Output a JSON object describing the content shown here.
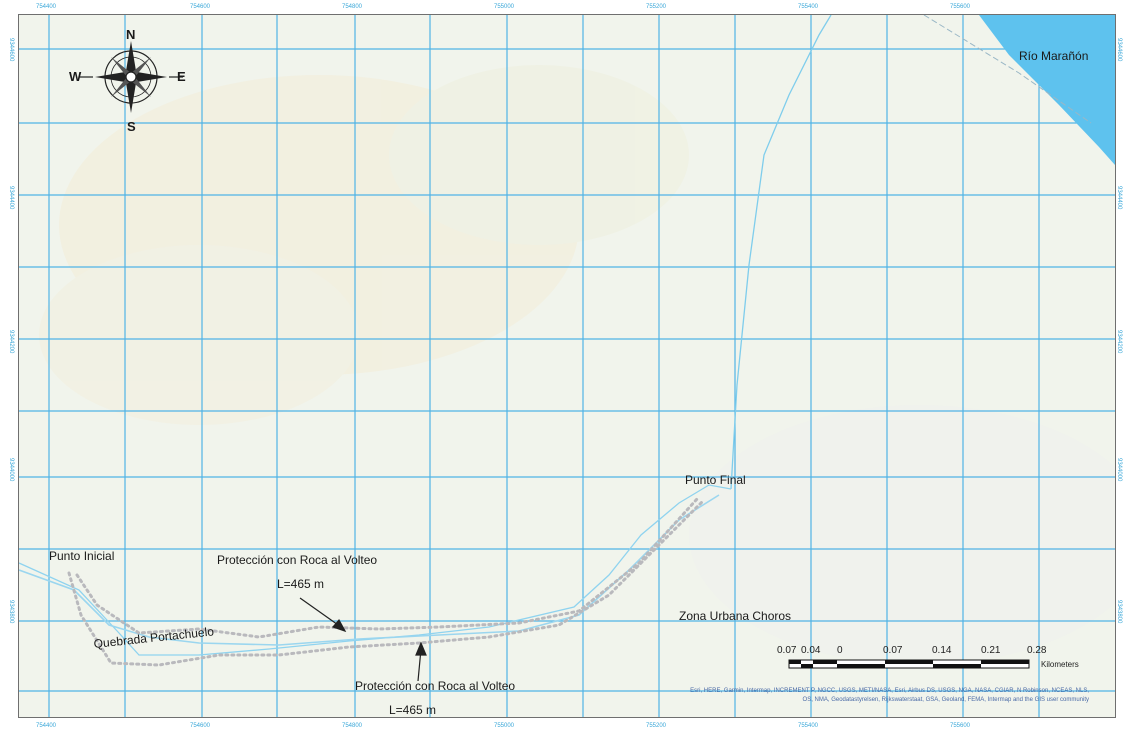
{
  "map": {
    "labels": {
      "river": "Río Marañón",
      "start_point": "Punto Inicial",
      "end_point": "Punto Final",
      "creek": "Quebrada Portachuelo",
      "urban_zone": "Zona Urbana Choros",
      "protection_1": "Protección con Roca al Volteo",
      "length_1": "L=465 m",
      "protection_2": "Protección con Roca al Volteo",
      "length_2": "L=465 m"
    },
    "compass": {
      "north": "N",
      "south": "S",
      "east": "E",
      "west": "W"
    },
    "scale_bar": {
      "ticks": [
        "0.07",
        "0.04",
        "0",
        "0.07",
        "0.14",
        "0.21",
        "0.28"
      ],
      "unit": "Kilometers"
    },
    "attribution": {
      "line1": "Esri, HERE, Garmin, Intermap, INCREMENT P, NGCC, USGS, METI/NASA, Esri, Airbus DS, USGS, NGA, NASA, CGIAR, N Robinson, NCEAS, NLS,",
      "line2": "OS, NMA, Geodatastyrelsen, Rijkswaterstaat, GSA, Geoland, FEMA, Intermap and the GIS user community"
    },
    "grid_top": [
      "754400",
      "754600",
      "754800",
      "755000",
      "755200",
      "755400",
      "755600"
    ],
    "grid_bottom": [
      "754400",
      "754600",
      "754800",
      "755000",
      "755200",
      "755400",
      "755600"
    ],
    "grid_left": [
      "9344600",
      "9344400",
      "9344200",
      "9344000",
      "9343800"
    ],
    "grid_right": [
      "9344600",
      "9344400",
      "9344200",
      "9344000",
      "9343800"
    ],
    "colors": {
      "grid": "#4fb3e6",
      "river": "#5ec2ee",
      "route": "#8fd3ef",
      "background": "#f1f4ec",
      "protection_dots": "#b9b9bd"
    }
  }
}
